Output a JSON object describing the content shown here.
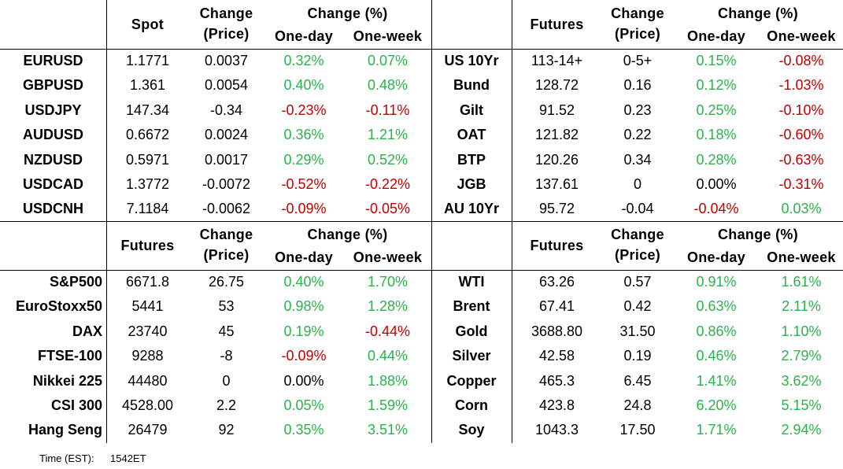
{
  "panels": [
    {
      "price_header": "Spot",
      "change_header": [
        "Change",
        "(Price)"
      ],
      "pct_header": "Change (%)",
      "pct_subheaders": [
        "One-day",
        "One-week"
      ],
      "rows": [
        [
          "EURUSD",
          "1.1771",
          "0.0037",
          "0.32%",
          "0.07%"
        ],
        [
          "GBPUSD",
          "1.361",
          "0.0054",
          "0.40%",
          "0.48%"
        ],
        [
          "USDJPY",
          "147.34",
          "-0.34",
          "-0.23%",
          "-0.11%"
        ],
        [
          "AUDUSD",
          "0.6672",
          "0.0024",
          "0.36%",
          "1.21%"
        ],
        [
          "NZDUSD",
          "0.5971",
          "0.0017",
          "0.29%",
          "0.52%"
        ],
        [
          "USDCAD",
          "1.3772",
          "-0.0072",
          "-0.52%",
          "-0.22%"
        ],
        [
          "USDCNH",
          "7.1184",
          "-0.0062",
          "-0.09%",
          "-0.05%"
        ]
      ]
    },
    {
      "price_header": "Futures",
      "change_header": [
        "Change",
        "(Price)"
      ],
      "pct_header": "Change (%)",
      "pct_subheaders": [
        "One-day",
        "One-week"
      ],
      "rows": [
        [
          "US 10Yr",
          "113-14+",
          "0-5+",
          "0.15%",
          "-0.08%"
        ],
        [
          "Bund",
          "128.72",
          "0.16",
          "0.12%",
          "-1.03%"
        ],
        [
          "Gilt",
          "91.52",
          "0.23",
          "0.25%",
          "-0.10%"
        ],
        [
          "OAT",
          "121.82",
          "0.22",
          "0.18%",
          "-0.60%"
        ],
        [
          "BTP",
          "120.26",
          "0.34",
          "0.28%",
          "-0.63%"
        ],
        [
          "JGB",
          "137.61",
          "0",
          "0.00%",
          "-0.31%"
        ],
        [
          "AU 10Yr",
          "95.72",
          "-0.04",
          "-0.04%",
          "0.03%"
        ]
      ]
    },
    {
      "price_header": "Futures",
      "change_header": [
        "Change",
        "(Price)"
      ],
      "pct_header": "Change (%)",
      "pct_subheaders": [
        "One-day",
        "One-week"
      ],
      "rows": [
        [
          "S&P500",
          "6671.8",
          "26.75",
          "0.40%",
          "1.70%"
        ],
        [
          "EuroStoxx50",
          "5441",
          "53",
          "0.98%",
          "1.28%"
        ],
        [
          "DAX",
          "23740",
          "45",
          "0.19%",
          "-0.44%"
        ],
        [
          "FTSE-100",
          "9288",
          "-8",
          "-0.09%",
          "0.44%"
        ],
        [
          "Nikkei 225",
          "44480",
          "0",
          "0.00%",
          "1.88%"
        ],
        [
          "CSI 300",
          "4528.00",
          "2.2",
          "0.05%",
          "1.59%"
        ],
        [
          "Hang Seng",
          "26479",
          "92",
          "0.35%",
          "3.51%"
        ]
      ]
    },
    {
      "price_header": "Futures",
      "change_header": [
        "Change",
        "(Price)"
      ],
      "pct_header": "Change (%)",
      "pct_subheaders": [
        "One-day",
        "One-week"
      ],
      "rows": [
        [
          "WTI",
          "63.26",
          "0.57",
          "0.91%",
          "1.61%"
        ],
        [
          "Brent",
          "67.41",
          "0.42",
          "0.63%",
          "2.11%"
        ],
        [
          "Gold",
          "3688.80",
          "31.50",
          "0.86%",
          "1.10%"
        ],
        [
          "Silver",
          "42.58",
          "0.19",
          "0.46%",
          "2.79%"
        ],
        [
          "Copper",
          "465.3",
          "6.45",
          "1.41%",
          "3.62%"
        ],
        [
          "Corn",
          "423.8",
          "24.8",
          "6.20%",
          "5.15%"
        ],
        [
          "Soy",
          "1043.3",
          "17.50",
          "1.71%",
          "2.94%"
        ]
      ]
    }
  ],
  "footer": {
    "label": "Time (EST):",
    "value": "1542ET"
  },
  "colors": {
    "up": "#2bb24c",
    "down": "#c00000",
    "flat": "#000000"
  }
}
